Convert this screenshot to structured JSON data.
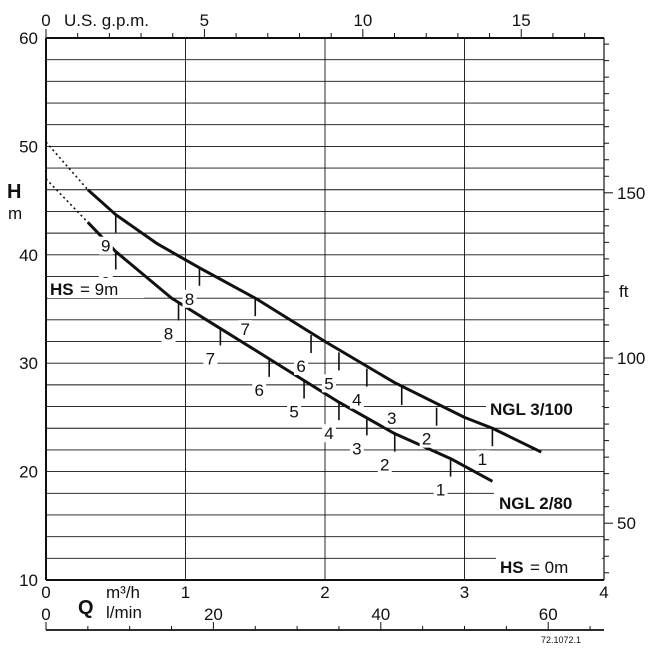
{
  "chart_data": {
    "type": "line",
    "title": "",
    "y_label_main": "H",
    "y_label_unit": "m",
    "y_right_label": "ft",
    "x_label_main": "Q",
    "x_unit_m3h": "m³/h",
    "x_unit_lmin": "l/min",
    "top_unit": "U.S. g.p.m.",
    "reference": "72.1072.1",
    "ylim": [
      10,
      60
    ],
    "xlim_m3h": [
      0,
      4
    ],
    "y_ticks_m": [
      "10",
      "20",
      "30",
      "40",
      "50",
      "60"
    ],
    "y_ticks_ft": [
      "50",
      "100",
      "150"
    ],
    "x_ticks_m3h": [
      "0",
      "1",
      "2",
      "3",
      "4"
    ],
    "x_ticks_lmin": [
      "0",
      "20",
      "40",
      "60"
    ],
    "x_ticks_gpm": [
      "0",
      "5",
      "10",
      "15"
    ],
    "hs_label": "HS",
    "hs_top": "= 9m",
    "hs_bottom": "= 0m",
    "series": [
      {
        "name": "NGL 3/100",
        "points": [
          [
            0.3,
            46
          ],
          [
            0.5,
            43.7
          ],
          [
            0.8,
            41
          ],
          [
            1.1,
            38.8
          ],
          [
            1.5,
            36
          ],
          [
            2.0,
            32
          ],
          [
            2.5,
            28.2
          ],
          [
            3.0,
            25
          ],
          [
            3.2,
            24
          ],
          [
            3.55,
            21.8
          ]
        ],
        "shutoff": [
          0,
          50.4
        ],
        "hs_marks": [
          {
            "label": "9",
            "x": 0.5,
            "y": 43.7
          },
          {
            "label": "8",
            "x": 1.1,
            "y": 38.8
          },
          {
            "label": "7",
            "x": 1.5,
            "y": 36
          },
          {
            "label": "6",
            "x": 1.9,
            "y": 32.6
          },
          {
            "label": "5",
            "x": 2.1,
            "y": 31
          },
          {
            "label": "4",
            "x": 2.3,
            "y": 29.5
          },
          {
            "label": "3",
            "x": 2.55,
            "y": 27.8
          },
          {
            "label": "2",
            "x": 2.8,
            "y": 25.9
          },
          {
            "label": "1",
            "x": 3.2,
            "y": 24
          }
        ]
      },
      {
        "name": "NGL 2/80",
        "points": [
          [
            0.3,
            43
          ],
          [
            0.5,
            40.3
          ],
          [
            0.9,
            36
          ],
          [
            1.2,
            33.6
          ],
          [
            1.6,
            30.4
          ],
          [
            2.1,
            26.4
          ],
          [
            2.5,
            23.5
          ],
          [
            2.9,
            21.2
          ],
          [
            3.2,
            19.1
          ]
        ],
        "shutoff": [
          0,
          47
        ],
        "hs_marks": [
          {
            "label": "9",
            "x": 0.5,
            "y": 40.3
          },
          {
            "label": "8",
            "x": 0.95,
            "y": 35.6
          },
          {
            "label": "7",
            "x": 1.25,
            "y": 33.3
          },
          {
            "label": "6",
            "x": 1.6,
            "y": 30.4
          },
          {
            "label": "5",
            "x": 1.85,
            "y": 28.4
          },
          {
            "label": "4",
            "x": 2.1,
            "y": 26.4
          },
          {
            "label": "3",
            "x": 2.3,
            "y": 25
          },
          {
            "label": "2",
            "x": 2.5,
            "y": 23.5
          },
          {
            "label": "1",
            "x": 2.9,
            "y": 21.2
          }
        ]
      }
    ]
  }
}
